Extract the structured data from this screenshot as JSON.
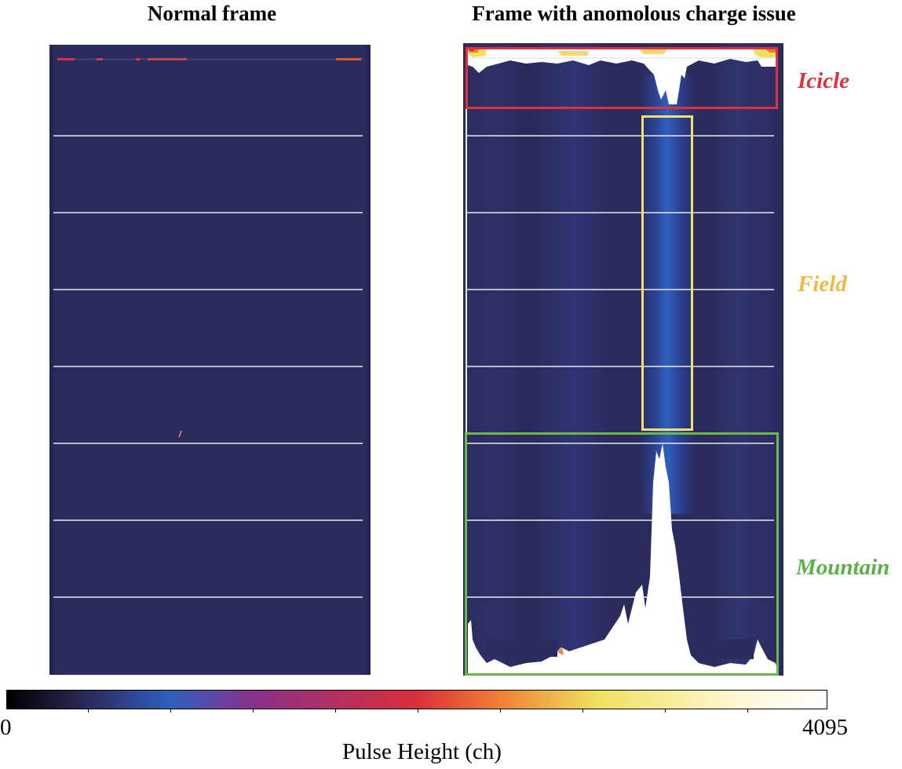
{
  "figure": {
    "left_panel": {
      "title": "Normal frame"
    },
    "right_panel": {
      "title": "Frame with anomolous charge issue"
    },
    "regions": [
      {
        "name": "Icicle",
        "color": "#e0303a"
      },
      {
        "name": "Field",
        "color": "#f0b840"
      },
      {
        "name": "Mountain",
        "color": "#5cb04a"
      }
    ],
    "colorbar": {
      "min_label": "0",
      "max_label": "4095",
      "axis_label": "Pulse Height (ch)",
      "colors": [
        "#000000",
        "#2b2b5e",
        "#2f5fbf",
        "#8a2f8a",
        "#d9303a",
        "#f07f35",
        "#f0e060",
        "#ffffff"
      ]
    },
    "colors": {
      "background_pixel": "#2b2b5e",
      "blue_band": "#2f5fbf",
      "separator": "#e8e8ef",
      "saturated": "#ffffff"
    }
  }
}
